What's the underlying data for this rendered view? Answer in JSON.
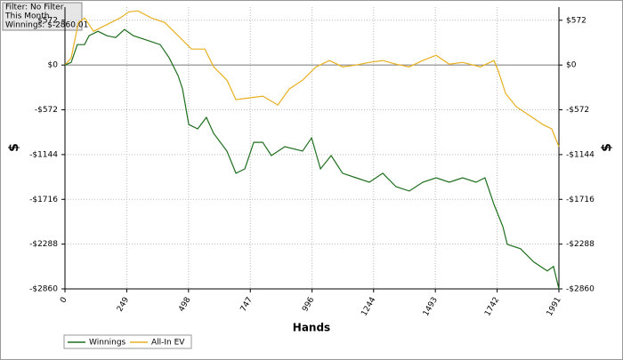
{
  "chart_data": {
    "type": "line",
    "annotations": [
      "Filter: No Filter",
      "This Month",
      "Winnings: $-2860.01"
    ],
    "xlabel": "Hands",
    "ylabel": "$",
    "xlim": [
      0,
      1991
    ],
    "ylim": [
      -2860,
      740
    ],
    "xticks": [
      0,
      249,
      498,
      747,
      996,
      1244,
      1493,
      1742,
      1991
    ],
    "yticks": [
      {
        "value": 572,
        "label": "$572"
      },
      {
        "value": 0,
        "label": "$0"
      },
      {
        "value": -572,
        "label": "-$572"
      },
      {
        "value": -1144,
        "label": "-$1144"
      },
      {
        "value": -1716,
        "label": "-$1716"
      },
      {
        "value": -2288,
        "label": "-$2288"
      },
      {
        "value": -2860,
        "label": "-$2860"
      }
    ],
    "grid": true,
    "legend": "bottom-left",
    "series": [
      {
        "name": "Winnings",
        "color": "#1e6e1e",
        "x": [
          0,
          25,
          50,
          79,
          97,
          133,
          169,
          204,
          240,
          276,
          330,
          384,
          420,
          456,
          474,
          499,
          535,
          570,
          599,
          653,
          689,
          725,
          761,
          797,
          832,
          886,
          958,
          994,
          1030,
          1073,
          1119,
          1173,
          1227,
          1281,
          1334,
          1388,
          1442,
          1496,
          1549,
          1603,
          1657,
          1693,
          1729,
          1765,
          1783,
          1836,
          1890,
          1944,
          1969,
          1991
        ],
        "values": [
          0,
          34,
          261,
          261,
          374,
          431,
          374,
          352,
          454,
          374,
          318,
          261,
          91,
          -136,
          -306,
          -760,
          -816,
          -669,
          -873,
          -1100,
          -1383,
          -1327,
          -987,
          -987,
          -1157,
          -1043,
          -1100,
          -930,
          -1327,
          -1157,
          -1383,
          -1440,
          -1497,
          -1383,
          -1554,
          -1610,
          -1497,
          -1440,
          -1497,
          -1440,
          -1497,
          -1440,
          -1780,
          -2064,
          -2291,
          -2347,
          -2517,
          -2631,
          -2574,
          -2860
        ]
      },
      {
        "name": "All-In EV",
        "color": "#e8b020",
        "x": [
          0,
          25,
          54,
          79,
          115,
          151,
          186,
          222,
          258,
          294,
          348,
          402,
          456,
          510,
          564,
          599,
          653,
          689,
          743,
          797,
          858,
          904,
          958,
          1012,
          1066,
          1119,
          1173,
          1227,
          1281,
          1334,
          1388,
          1442,
          1496,
          1549,
          1603,
          1675,
          1729,
          1747,
          1776,
          1819,
          1873,
          1926,
          1962,
          1991
        ],
        "values": [
          0,
          91,
          544,
          601,
          431,
          488,
          544,
          601,
          680,
          692,
          601,
          544,
          374,
          204,
          204,
          -23,
          -193,
          -442,
          -420,
          -397,
          -510,
          -306,
          -193,
          -23,
          57,
          -23,
          0,
          34,
          57,
          11,
          -23,
          57,
          125,
          11,
          34,
          -23,
          57,
          -79,
          -363,
          -533,
          -646,
          -760,
          -816,
          -1043
        ]
      }
    ]
  }
}
